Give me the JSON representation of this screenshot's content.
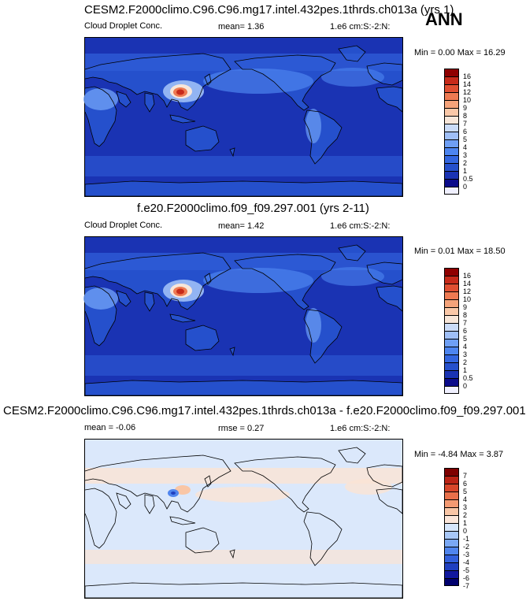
{
  "season": "ANN",
  "panels": [
    {
      "title": "CESM2.F2000climo.C96.C96.mg17.intel.432pes.1thrds.ch013a (yrs 1)",
      "left_label": "Cloud Droplet Conc.",
      "mid_label": "mean=   1.36",
      "right_label": "1.e6 cm:S:-2:N:",
      "minmax": "Min =  0.00 Max = 16.29",
      "colorbar_labels": [
        "16",
        "14",
        "12",
        "10",
        "9",
        "8",
        "7",
        "6",
        "5",
        "4",
        "3",
        "2",
        "1",
        "0.5",
        "0"
      ]
    },
    {
      "title": "f.e20.F2000climo.f09_f09.297.001 (yrs 2-11)",
      "left_label": "Cloud Droplet Conc.",
      "mid_label": "mean=   1.42",
      "right_label": "1.e6 cm:S:-2:N:",
      "minmax": "Min =  0.01 Max = 18.50",
      "colorbar_labels": [
        "16",
        "14",
        "12",
        "10",
        "9",
        "8",
        "7",
        "6",
        "5",
        "4",
        "3",
        "2",
        "1",
        "0.5",
        "0"
      ]
    },
    {
      "title": "CESM2.F2000climo.C96.C96.mg17.intel.432pes.1thrds.ch013a - f.e20.F2000climo.f09_f09.297.001",
      "left_label": "mean =  -0.06",
      "mid_label": "rmse =   0.27",
      "right_label": "1.e6 cm:S:-2:N:",
      "minmax": "Min = -4.84 Max =  3.87",
      "colorbar_labels": [
        "7",
        "6",
        "5",
        "4",
        "3",
        "2",
        "1",
        "0",
        "-1",
        "-2",
        "-3",
        "-4",
        "-5",
        "-6",
        "-7"
      ]
    }
  ],
  "colors": {
    "abs_scale": [
      "#f0f0ff",
      "#0b0b8a",
      "#1a33b3",
      "#2550cc",
      "#3366e0",
      "#4d85f0",
      "#6e9ff5",
      "#9fbff7",
      "#cadbf7",
      "#f7e6d9",
      "#fac8a8",
      "#f5a37a",
      "#ee7a52",
      "#e04f32",
      "#c72a1a",
      "#8f0000"
    ],
    "diff_scale": [
      "#00006e",
      "#10189e",
      "#2040c0",
      "#3360dc",
      "#5085ee",
      "#7aa8f5",
      "#a8c8f8",
      "#d6e6fb",
      "#fbe6da",
      "#f9c6a6",
      "#f49a72",
      "#e8704a",
      "#d8462a",
      "#bb2315",
      "#7e0000"
    ],
    "ocean_abs": "#1a33b3",
    "ocean_abs_light": "#2e5bd6",
    "diff_base": "#dbe8fb",
    "diff_warm": "#fbe4d4"
  },
  "chart_data": [
    {
      "type": "heatmap",
      "title": "CESM2.F2000climo.C96.C96.mg17.intel.432pes.1thrds.ch013a (yrs 1)",
      "variable": "Cloud Droplet Conc.",
      "units": "1.e6 cm:S:-2:N:",
      "mean": 1.36,
      "min": 0.0,
      "max": 16.29,
      "levels": [
        0,
        0.5,
        1,
        2,
        3,
        4,
        5,
        6,
        7,
        8,
        9,
        10,
        12,
        14,
        16
      ]
    },
    {
      "type": "heatmap",
      "title": "f.e20.F2000climo.f09_f09.297.001 (yrs 2-11)",
      "variable": "Cloud Droplet Conc.",
      "units": "1.e6 cm:S:-2:N:",
      "mean": 1.42,
      "min": 0.01,
      "max": 18.5,
      "levels": [
        0,
        0.5,
        1,
        2,
        3,
        4,
        5,
        6,
        7,
        8,
        9,
        10,
        12,
        14,
        16
      ]
    },
    {
      "type": "heatmap",
      "title": "CESM2.F2000climo.C96.C96.mg17.intel.432pes.1thrds.ch013a - f.e20.F2000climo.f09_f09.297.001",
      "units": "1.e6 cm:S:-2:N:",
      "mean": -0.06,
      "rmse": 0.27,
      "min": -4.84,
      "max": 3.87,
      "levels": [
        -7,
        -6,
        -5,
        -4,
        -3,
        -2,
        -1,
        0,
        1,
        2,
        3,
        4,
        5,
        6,
        7
      ]
    }
  ]
}
